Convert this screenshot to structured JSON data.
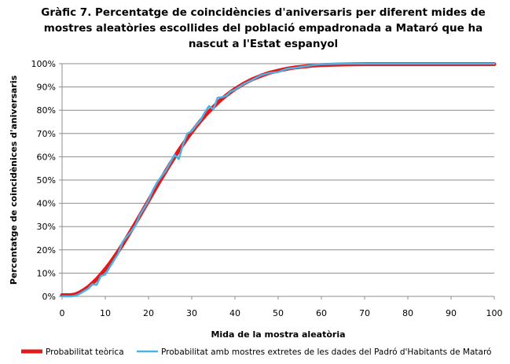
{
  "chart_data": {
    "type": "line",
    "title_lines": [
      "Gràfic 7. Percentatge de coincidències d'aniversaris per diferent mides de",
      "mostres aleatòries escollides del població empadronada a Mataró que ha",
      "nascut a l'Estat espanyol"
    ],
    "xlabel": "Mida de la mostra aleatòria",
    "ylabel": "Percentatge de coincidènices  d'aniversaris",
    "xlim": [
      0,
      100
    ],
    "ylim": [
      0,
      100
    ],
    "x_ticks": [
      "0",
      "10",
      "20",
      "30",
      "40",
      "50",
      "60",
      "70",
      "80",
      "90",
      "100"
    ],
    "y_ticks": [
      "0%",
      "10%",
      "20%",
      "30%",
      "40%",
      "50%",
      "60%",
      "70%",
      "80%",
      "90%",
      "100%"
    ],
    "grid": true,
    "legend_position": "bottom",
    "series": [
      {
        "name": "Probabilitat teòrica",
        "color": "#e31a1c",
        "x": [
          0,
          1,
          2,
          3,
          4,
          5,
          6,
          7,
          8,
          9,
          10,
          11,
          12,
          13,
          14,
          15,
          16,
          17,
          18,
          19,
          20,
          21,
          22,
          23,
          24,
          25,
          26,
          27,
          28,
          29,
          30,
          31,
          32,
          33,
          34,
          35,
          36,
          37,
          38,
          39,
          40,
          42,
          44,
          46,
          48,
          50,
          52,
          54,
          56,
          58,
          60,
          63,
          66,
          70,
          75,
          80,
          85,
          90,
          95,
          100
        ],
        "values": [
          0.5,
          0.5,
          0.5,
          0.8,
          1.6,
          2.7,
          4.0,
          5.6,
          7.4,
          9.5,
          11.7,
          14.1,
          16.7,
          19.4,
          22.3,
          25.3,
          28.4,
          31.5,
          34.7,
          37.9,
          41.1,
          44.4,
          47.6,
          50.7,
          53.8,
          56.9,
          59.8,
          62.7,
          65.4,
          68.1,
          70.6,
          73.0,
          75.3,
          77.5,
          79.5,
          81.4,
          83.2,
          84.9,
          86.4,
          87.8,
          89.1,
          91.4,
          93.3,
          94.8,
          96.1,
          97.0,
          97.8,
          98.4,
          98.8,
          99.2,
          99.4,
          99.6,
          99.7,
          99.8,
          99.8,
          99.8,
          99.8,
          99.8,
          99.8,
          99.8
        ]
      },
      {
        "name": "Probabilitat amb  mostres extretes de les dades del Padró d'Habitants  de Mataró",
        "color": "#4ab4e6",
        "x": [
          0,
          1,
          2,
          3,
          4,
          5,
          6,
          7,
          8,
          9,
          10,
          11,
          12,
          13,
          14,
          15,
          16,
          17,
          18,
          19,
          20,
          21,
          22,
          23,
          24,
          25,
          26,
          27,
          28,
          29,
          30,
          31,
          32,
          33,
          34,
          35,
          36,
          37,
          38,
          39,
          40,
          42,
          44,
          46,
          48,
          50,
          52,
          54,
          56,
          58,
          60,
          65,
          70,
          80,
          90,
          100
        ],
        "values": [
          0,
          0,
          0,
          0.2,
          1.0,
          2.2,
          3.2,
          5.2,
          5.0,
          8.8,
          9.4,
          12.5,
          15.5,
          18.4,
          23.4,
          25.7,
          28.0,
          30.5,
          35.0,
          38.0,
          41.2,
          45.6,
          49.0,
          51.6,
          54.0,
          57.4,
          60.8,
          59.0,
          65.4,
          70.0,
          71.0,
          73.5,
          75.6,
          79.0,
          81.8,
          80.4,
          85.4,
          85.6,
          86.2,
          88.0,
          88.8,
          91.2,
          93.0,
          95.0,
          96.0,
          96.4,
          97.8,
          98.2,
          98.8,
          99.4,
          99.8,
          100,
          100,
          100,
          100,
          100
        ]
      }
    ]
  }
}
